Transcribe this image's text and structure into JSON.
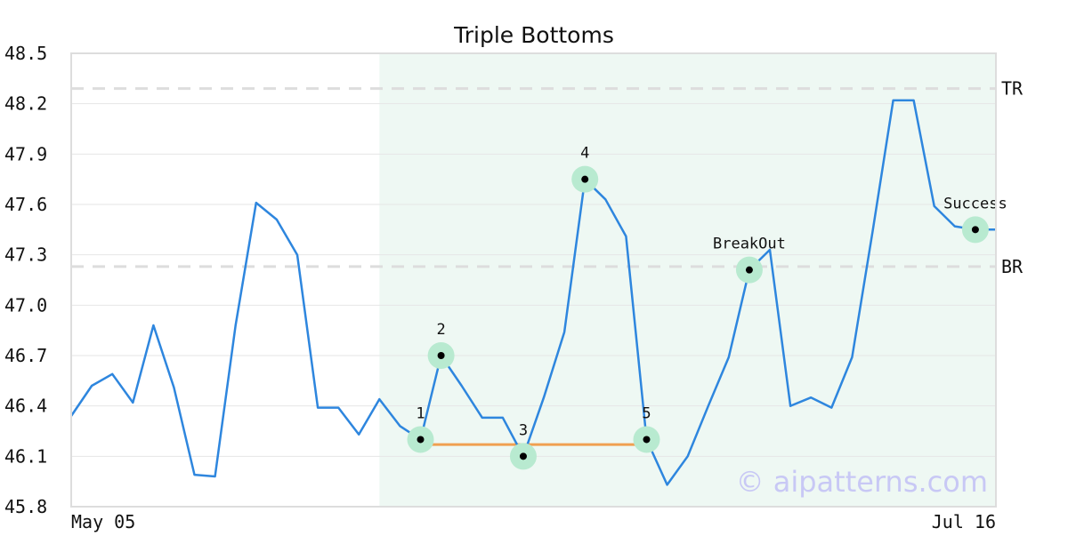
{
  "chart_data": {
    "type": "line",
    "title": "Triple Bottoms",
    "watermark": "© aipatterns.com",
    "x_tick_labels": [
      "May 05",
      "Jul 16"
    ],
    "y_ticks": [
      "45.8",
      "46.1",
      "46.4",
      "46.7",
      "47.0",
      "47.3",
      "47.6",
      "47.9",
      "48.2",
      "48.5"
    ],
    "ylim": [
      45.8,
      48.5
    ],
    "grid": true,
    "series": [
      {
        "color": "#2e86de",
        "values": [
          46.34,
          46.52,
          46.59,
          46.42,
          46.88,
          46.51,
          45.99,
          45.98,
          46.88,
          47.61,
          47.51,
          47.3,
          46.39,
          46.39,
          46.23,
          46.44,
          46.28,
          46.2,
          46.7,
          46.52,
          46.33,
          46.33,
          46.1,
          46.45,
          46.84,
          47.75,
          47.63,
          47.41,
          46.2,
          45.93,
          46.1,
          46.4,
          46.69,
          47.21,
          47.33,
          46.4,
          46.45,
          46.39,
          46.69,
          47.44,
          48.22,
          48.22,
          47.59,
          47.47,
          47.45,
          47.45
        ]
      }
    ],
    "highlight_region": {
      "start_index": 15,
      "end_index": 46,
      "color": "#eef8f3"
    },
    "levels": [
      {
        "label": "TR",
        "value": 48.29
      },
      {
        "label": "BR",
        "value": 47.23
      }
    ],
    "baseline": {
      "value": 46.17,
      "from_index": 17,
      "to_index": 28,
      "color": "#f0a050"
    },
    "annotations": [
      {
        "label": "1",
        "index": 17,
        "value": 46.2,
        "label_position": "above"
      },
      {
        "label": "2",
        "index": 18,
        "value": 46.7,
        "label_position": "above"
      },
      {
        "label": "3",
        "index": 22,
        "value": 46.1,
        "label_position": "above"
      },
      {
        "label": "4",
        "index": 25,
        "value": 47.75,
        "label_position": "above"
      },
      {
        "label": "5",
        "index": 28,
        "value": 46.2,
        "label_position": "above"
      },
      {
        "label": "BreakOut",
        "index": 33,
        "value": 47.21,
        "label_position": "above"
      },
      {
        "label": "Success",
        "index": 44,
        "value": 47.45,
        "label_position": "above"
      }
    ],
    "colors": {
      "line": "#2e86de",
      "marker_halo": "#b8ead0",
      "marker_dot": "#000000",
      "level_line": "#dddddd",
      "grid": "#e6e6e6",
      "frame": "#dddddd"
    }
  }
}
